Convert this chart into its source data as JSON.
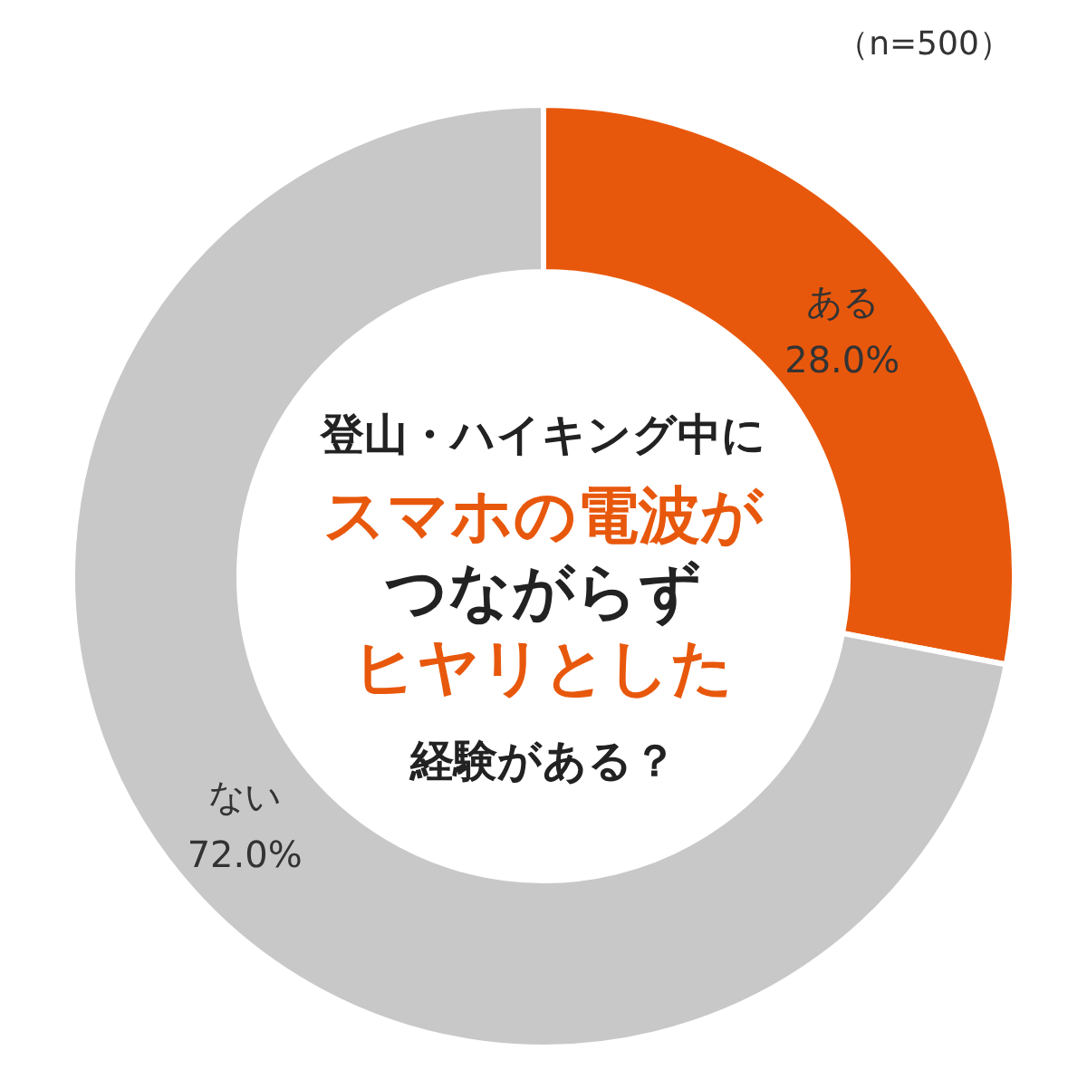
{
  "chart_data": {
    "type": "donut",
    "title": "登山・ハイキング中に",
    "subtitle": "（n=500）",
    "annotations": [
      "スマホの電波が",
      "つながらず",
      "ヒヤリとした",
      "経験がある？"
    ],
    "categories": [
      "ある",
      "ない"
    ],
    "values": [
      28,
      72
    ],
    "value_labels": [
      "28.0%",
      "72.0%"
    ],
    "colors": [
      "#e8580c",
      "#c8c8c8"
    ]
  }
}
